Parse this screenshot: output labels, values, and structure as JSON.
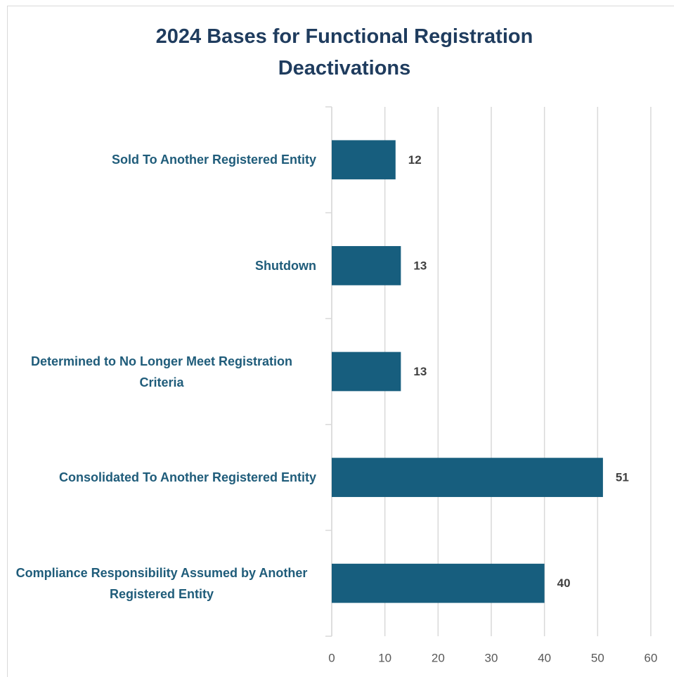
{
  "chart_data": {
    "type": "bar",
    "orientation": "horizontal",
    "title": "2024 Bases for Functional Registration Deactivations",
    "categories": [
      "Sold To Another Registered Entity",
      "Shutdown",
      "Determined to No Longer Meet Registration Criteria",
      "Consolidated To Another Registered Entity",
      "Compliance Responsibility Assumed by Another Registered Entity"
    ],
    "values": [
      12,
      13,
      13,
      51,
      40
    ],
    "color": "#175e7e",
    "xlim": [
      0,
      60
    ],
    "xticks": [
      0,
      10,
      20,
      30,
      40,
      50,
      60
    ],
    "grid": true
  }
}
